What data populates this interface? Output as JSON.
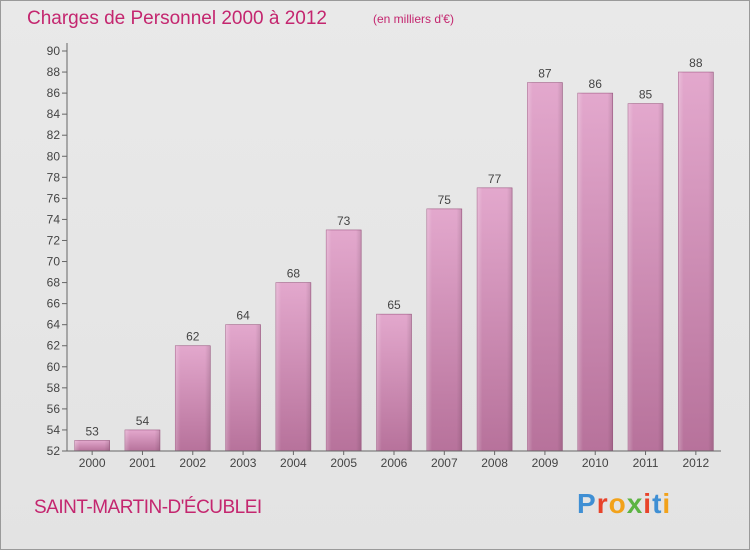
{
  "header": {
    "title": "Charges de Personnel 2000 à 2012",
    "unit": "(en milliers d'€)"
  },
  "footer": {
    "commune": "SAINT-MARTIN-D'ÉCUBLEI",
    "logo_letters": [
      "P",
      "r",
      "o",
      "x",
      "i",
      "t",
      "i"
    ],
    "logo_colors": [
      "#3f8fd4",
      "#e8432b",
      "#f2a21a",
      "#5cb443",
      "#e8432b",
      "#3f8fd4",
      "#f2a21a"
    ]
  },
  "colors": {
    "bar_light": "#e3a8cd",
    "bar_dark": "#b7729b",
    "axis": "#666666",
    "text": "#444444",
    "accent": "#c4266f"
  },
  "chart_data": {
    "type": "bar",
    "title": "Charges de Personnel 2000 à 2012",
    "ylabel": "(en milliers d'€)",
    "categories": [
      "2000",
      "2001",
      "2002",
      "2003",
      "2004",
      "2005",
      "2006",
      "2007",
      "2008",
      "2009",
      "2010",
      "2011",
      "2012"
    ],
    "values": [
      53,
      54,
      62,
      64,
      68,
      73,
      65,
      75,
      77,
      87,
      86,
      85,
      88
    ],
    "ylim": [
      52,
      90
    ],
    "yticks": [
      52,
      54,
      56,
      58,
      60,
      62,
      64,
      66,
      68,
      70,
      72,
      74,
      76,
      78,
      80,
      82,
      84,
      86,
      88,
      90
    ],
    "grid": false,
    "legend": "none"
  }
}
